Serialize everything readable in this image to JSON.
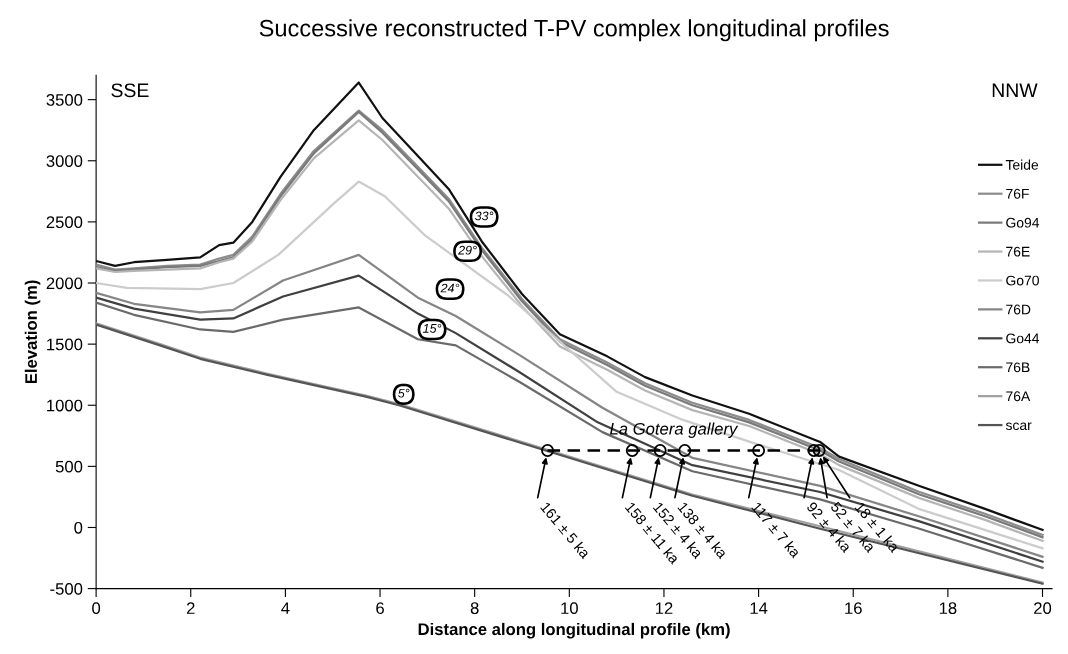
{
  "chart_data": {
    "type": "line",
    "title": "Successive reconstructed T-PV complex longitudinal profiles",
    "xlabel": "Distance along longitudinal profile (km)",
    "ylabel": "Elevation (m)",
    "xlim": [
      0,
      20.2
    ],
    "ylim": [
      -500,
      3700
    ],
    "xticks": [
      0,
      2,
      4,
      6,
      8,
      10,
      12,
      14,
      16,
      18,
      20
    ],
    "yticks": [
      -500,
      0,
      500,
      1000,
      1500,
      2000,
      2500,
      3000,
      3500
    ],
    "grid": false,
    "legend": "right",
    "line_style": "solid",
    "x": [
      0,
      0.4,
      0.8,
      1.5,
      2.2,
      2.6,
      2.9,
      3.3,
      3.9,
      4.6,
      5.55,
      6.05,
      6.8,
      7.45,
      8.15,
      9.0,
      9.8,
      10.8,
      11.6,
      12.6,
      13.8,
      15.3,
      15.7,
      17.4,
      18.8,
      20
    ],
    "series": [
      {
        "name": "Teide",
        "color": "#111111",
        "values": [
          2180,
          2140,
          2170,
          2190,
          2210,
          2310,
          2330,
          2500,
          2870,
          3250,
          3640,
          3350,
          3040,
          2770,
          2340,
          1910,
          1580,
          1400,
          1230,
          1080,
          930,
          700,
          580,
          340,
          150,
          -20
        ]
      },
      {
        "name": "76F",
        "color": "#8c8c8c",
        "values": [
          2150,
          2110,
          2120,
          2140,
          2150,
          2200,
          2230,
          2380,
          2730,
          3080,
          3410,
          3250,
          2950,
          2690,
          2290,
          1870,
          1540,
          1350,
          1180,
          1020,
          880,
          650,
          560,
          290,
          110,
          -60
        ]
      },
      {
        "name": "Go94",
        "color": "#7a7a7a",
        "values": [
          2130,
          2100,
          2110,
          2130,
          2140,
          2180,
          2210,
          2360,
          2710,
          3060,
          3400,
          3230,
          2930,
          2670,
          2270,
          1850,
          1520,
          1330,
          1160,
          1000,
          860,
          630,
          540,
          270,
          90,
          -80
        ]
      },
      {
        "name": "76E",
        "color": "#b5b5b5",
        "values": [
          2120,
          2090,
          2100,
          2110,
          2120,
          2170,
          2200,
          2340,
          2680,
          3020,
          3330,
          3170,
          2870,
          2610,
          2220,
          1810,
          1480,
          1290,
          1120,
          960,
          830,
          600,
          510,
          240,
          60,
          -110
        ]
      },
      {
        "name": "Go70",
        "color": "#cccccc",
        "x": [
          0,
          0.65,
          2.2,
          2.9,
          3.85,
          5.05,
          5.55,
          6.1,
          6.95,
          8.7,
          11.0,
          12.4,
          13.9,
          15.7,
          17.4,
          20
        ],
        "values": [
          2000,
          1960,
          1950,
          2000,
          2230,
          2660,
          2830,
          2710,
          2390,
          1900,
          1110,
          880,
          690,
          470,
          150,
          -170
        ]
      },
      {
        "name": "76D",
        "color": "#858585",
        "x": [
          0,
          0.8,
          2.2,
          2.9,
          3.95,
          5.55,
          6.8,
          7.6,
          8.95,
          10.7,
          12.6,
          15.3,
          17.4,
          20
        ],
        "values": [
          1920,
          1830,
          1760,
          1780,
          2020,
          2230,
          1880,
          1730,
          1410,
          980,
          570,
          340,
          90,
          -240
        ]
      },
      {
        "name": "Go44",
        "color": "#404040",
        "x": [
          0,
          0.8,
          2.2,
          2.9,
          3.95,
          5.55,
          6.8,
          7.6,
          8.95,
          10.6,
          12.6,
          15.3,
          17.4,
          20
        ],
        "values": [
          1880,
          1790,
          1700,
          1710,
          1890,
          2060,
          1750,
          1590,
          1270,
          860,
          510,
          290,
          50,
          -280
        ]
      },
      {
        "name": "76B",
        "color": "#6a6a6a",
        "x": [
          0,
          0.8,
          2.2,
          2.9,
          3.95,
          5.55,
          6.8,
          7.6,
          8.95,
          10.7,
          12.6,
          15.3,
          17.4,
          20
        ],
        "values": [
          1840,
          1740,
          1620,
          1600,
          1700,
          1800,
          1540,
          1490,
          1190,
          780,
          460,
          230,
          -10,
          -330
        ]
      },
      {
        "name": "76A",
        "color": "#a0a0a0",
        "x": [
          0,
          1.35,
          2.2,
          3.6,
          5.7,
          6.4,
          9.5,
          12.6,
          15.3,
          20
        ],
        "values": [
          1670,
          1500,
          1390,
          1260,
          1080,
          1010,
          640,
          270,
          10,
          -450
        ]
      },
      {
        "name": "scar",
        "color": "#555555",
        "x": [
          0,
          1.35,
          2.2,
          3.6,
          5.7,
          6.4,
          9.5,
          12.6,
          15.3,
          20
        ],
        "values": [
          1660,
          1490,
          1380,
          1250,
          1070,
          1000,
          630,
          260,
          -10,
          -460
        ]
      },
      {
        "color": "#000000",
        "line_style": "dashed",
        "marker": "circle",
        "x": [
          9.54,
          11.33,
          11.92,
          12.44,
          14.0,
          15.17,
          15.28
        ],
        "values": [
          630,
          630,
          630,
          630,
          630,
          630,
          630
        ]
      }
    ],
    "annotations": [
      "SSE",
      "NNW",
      {
        "text": "33°",
        "x": 8.2,
        "y": 2540
      },
      {
        "text": "29°",
        "x": 7.85,
        "y": 2260
      },
      {
        "text": "24°",
        "x": 7.48,
        "y": 1950
      },
      {
        "text": "15°",
        "x": 7.1,
        "y": 1620
      },
      {
        "text": "5°",
        "x": 6.5,
        "y": 1090
      },
      {
        "text": "La Gotera gallery",
        "x": 12.2,
        "y": 630
      },
      {
        "text": "161 ± 5 ka",
        "x": 9.54,
        "y": 630
      },
      {
        "text": "158 ± 11 ka",
        "x": 11.33,
        "y": 630
      },
      {
        "text": "152 ± 4 ka",
        "x": 11.92,
        "y": 630
      },
      {
        "text": "138 ± 4 ka",
        "x": 12.44,
        "y": 630
      },
      {
        "text": "117 ± 7 ka",
        "x": 14.0,
        "y": 630
      },
      {
        "text": "92 ± 4 ka",
        "x": 15.17,
        "y": 630
      },
      {
        "text": "52 ± 7 ka",
        "x": 15.28,
        "y": 630
      },
      {
        "text": "18 ± 1 ka",
        "x": 15.28,
        "y": 630
      }
    ]
  }
}
